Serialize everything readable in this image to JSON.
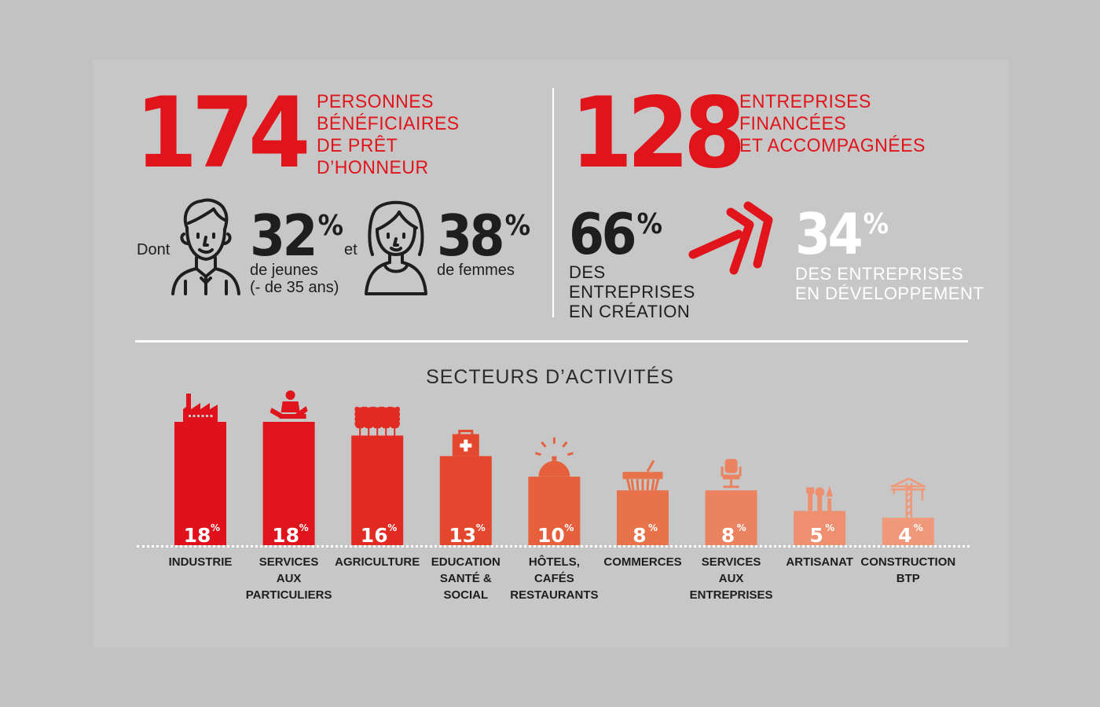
{
  "stat_left": {
    "number": "174",
    "label": [
      "PERSONNES",
      "BÉNÉFICIAIRES",
      "DE PRÊT",
      "D’HONNEUR"
    ],
    "dont": "Dont",
    "jeunes_value": "32",
    "jeunes_symbol": "%",
    "jeunes_label": [
      "de jeunes",
      "(- de 35 ans)"
    ],
    "et": "et",
    "femmes_value": "38",
    "femmes_symbol": "%",
    "femmes_label": "de femmes"
  },
  "stat_right": {
    "number": "128",
    "label": [
      "ENTREPRISES",
      "FINANCÉES",
      "ET ACCOMPAGNÉES"
    ],
    "creation_value": "66",
    "creation_symbol": "%",
    "creation_label": [
      "DES",
      "ENTREPRISES",
      "EN CRÉATION"
    ],
    "dev_value": "34",
    "dev_symbol": "%",
    "dev_label": [
      "DES ENTREPRISES",
      "EN DÉVELOPPEMENT"
    ]
  },
  "icons": {
    "young_man": "young-man-icon",
    "woman": "woman-icon",
    "arrow": "double-chevron-arrow-icon"
  },
  "colors": {
    "red": "#e1141b",
    "dark": "#1e1e1e",
    "background": "#c7c7c7"
  },
  "chart_data": {
    "type": "bar",
    "title": "SECTEURS D’ACTIVITÉS",
    "unit": "%",
    "ylim": [
      0,
      18
    ],
    "grid": false,
    "categories": [
      [
        "INDUSTRIE"
      ],
      [
        "SERVICES",
        "AUX",
        "PARTICULIERS"
      ],
      [
        "AGRICULTURE"
      ],
      [
        "EDUCATION",
        "SANTÉ &",
        "SOCIAL"
      ],
      [
        "HÔTELS,",
        "CAFÉS",
        "RESTAURANTS"
      ],
      [
        "COMMERCES"
      ],
      [
        "SERVICES",
        "AUX",
        "ENTREPRISES"
      ],
      [
        "ARTISANAT"
      ],
      [
        "CONSTRUCTION",
        "BTP"
      ]
    ],
    "values": [
      18,
      18,
      16,
      13,
      10,
      8,
      8,
      5,
      4
    ],
    "bar_colors": [
      "#e0111b",
      "#e0141c",
      "#e12a22",
      "#e3482e",
      "#e6603d",
      "#e8724a",
      "#eb8260",
      "#ee9070",
      "#f0987a"
    ],
    "icons": [
      "factory-icon",
      "person-service-icon",
      "wheat-icon",
      "medical-bag-icon",
      "service-bell-icon",
      "shopping-basket-icon",
      "office-chair-icon",
      "tools-icon",
      "crane-icon"
    ]
  }
}
